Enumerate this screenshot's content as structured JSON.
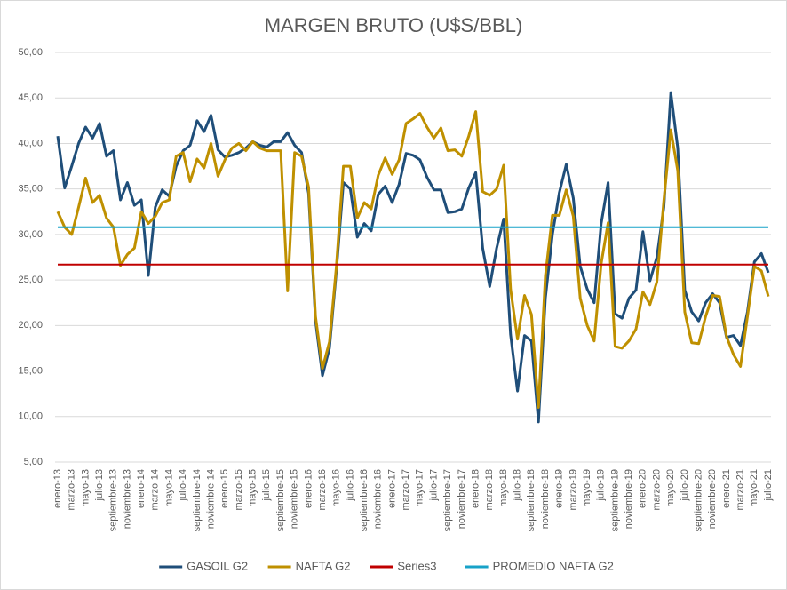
{
  "chart_data": {
    "type": "line",
    "title": "MARGEN BRUTO (U$S/BBL)",
    "categories": [
      "enero-13",
      null,
      "marzo-13",
      null,
      "mayo-13",
      null,
      "julio-13",
      null,
      "septiembre-13",
      null,
      "noviembre-13",
      null,
      "enero-14",
      null,
      "marzo-14",
      null,
      "mayo-14",
      null,
      "julio-14",
      null,
      "septiembre-14",
      null,
      "noviembre-14",
      null,
      "enero-15",
      null,
      "marzo-15",
      null,
      "mayo-15",
      null,
      "julio-15",
      null,
      "septiembre-15",
      null,
      "noviembre-15",
      null,
      "enero-16",
      null,
      "marzo-16",
      null,
      "mayo-16",
      null,
      "julio-16",
      null,
      "septiembre-16",
      null,
      "noviembre-16",
      null,
      "enero-17",
      null,
      "marzo-17",
      null,
      "mayo-17",
      null,
      "julio-17",
      null,
      "septiembre-17",
      null,
      "noviembre-17",
      null,
      "enero-18",
      null,
      "marzo-18",
      null,
      "mayo-18",
      null,
      "julio-18",
      null,
      "septiembre-18",
      null,
      "noviembre-18",
      null,
      "enero-19",
      null,
      "marzo-19",
      null,
      "mayo-19",
      null,
      "julio-19",
      null,
      "septiembre-19",
      null,
      "noviembre-19",
      null,
      "enero-20",
      null,
      "marzo-20",
      null,
      "mayo-20",
      null,
      "julio-20",
      null,
      "septiembre-20",
      null,
      "noviembre-20",
      null,
      "enero-21",
      null,
      "marzo-21",
      null,
      "mayo-21",
      null,
      "julio-21"
    ],
    "series": [
      {
        "name": "GASOIL G2",
        "color": "#1f4e79",
        "values": [
          40.8,
          35.1,
          37.5,
          40.0,
          41.8,
          40.6,
          42.2,
          38.6,
          39.2,
          33.8,
          35.7,
          33.2,
          33.8,
          25.5,
          33.0,
          34.9,
          34.2,
          37.5,
          39.2,
          39.8,
          42.5,
          41.3,
          43.1,
          39.3,
          38.5,
          38.7,
          39.0,
          39.5,
          40.2,
          39.8,
          39.6,
          40.2,
          40.2,
          41.2,
          39.8,
          39.0,
          34.5,
          20.5,
          14.5,
          17.5,
          26.0,
          35.7,
          35.0,
          29.7,
          31.2,
          30.4,
          34.4,
          35.3,
          33.5,
          35.5,
          38.9,
          38.7,
          38.2,
          36.3,
          34.9,
          34.9,
          32.4,
          32.5,
          32.8,
          35.1,
          36.8,
          28.5,
          24.3,
          28.5,
          31.7,
          19.0,
          12.8,
          18.9,
          18.3,
          9.4,
          23.0,
          30.0,
          34.6,
          37.7,
          34.0,
          26.5,
          24.0,
          22.5,
          31.2,
          35.7,
          21.3,
          20.8,
          23.0,
          23.9,
          30.3,
          24.9,
          27.5,
          33.0,
          45.6,
          39.5,
          23.9,
          21.5,
          20.5,
          22.5,
          23.5,
          22.5,
          18.7,
          18.9,
          17.8,
          21.5,
          27.0,
          27.9,
          25.8
        ]
      },
      {
        "name": "NAFTA G2",
        "color": "#bf9000",
        "values": [
          32.5,
          30.8,
          30.0,
          33.0,
          36.2,
          33.5,
          34.3,
          31.8,
          30.8,
          26.6,
          27.8,
          28.5,
          32.5,
          31.2,
          32.0,
          33.5,
          33.8,
          38.6,
          39.0,
          35.8,
          38.3,
          37.3,
          40.0,
          36.4,
          38.2,
          39.5,
          40.0,
          39.2,
          40.2,
          39.5,
          39.2,
          39.2,
          39.2,
          23.8,
          39.0,
          38.6,
          35.2,
          21.0,
          15.3,
          18.2,
          26.5,
          37.5,
          37.5,
          31.8,
          33.5,
          32.8,
          36.5,
          38.4,
          36.6,
          38.2,
          42.2,
          42.7,
          43.3,
          41.8,
          40.6,
          41.7,
          39.2,
          39.3,
          38.6,
          40.8,
          43.5,
          34.7,
          34.3,
          35.0,
          37.6,
          24.0,
          18.5,
          23.3,
          21.2,
          11.0,
          25.5,
          32.1,
          32.1,
          34.9,
          32.0,
          23.0,
          20.0,
          18.3,
          26.8,
          31.3,
          17.7,
          17.5,
          18.3,
          19.6,
          23.7,
          22.3,
          24.8,
          33.8,
          41.5,
          37.0,
          21.5,
          18.1,
          18.0,
          21.0,
          23.3,
          23.2,
          18.8,
          16.8,
          15.5,
          21.0,
          26.5,
          26.0,
          23.2
        ]
      },
      {
        "name": "Series3",
        "color": "#c00000",
        "value": 26.7
      },
      {
        "name": "PROMEDIO NAFTA G2",
        "color": "#17a2c8",
        "value": 30.8
      }
    ],
    "ylim": [
      5,
      50
    ],
    "yticks": [
      {
        "value": 5,
        "label": "5,00"
      },
      {
        "value": 10,
        "label": "10,00"
      },
      {
        "value": 15,
        "label": "15,00"
      },
      {
        "value": 20,
        "label": "20,00"
      },
      {
        "value": 25,
        "label": "25,00"
      },
      {
        "value": 30,
        "label": "30,00"
      },
      {
        "value": 35,
        "label": "35,00"
      },
      {
        "value": 40,
        "label": "40,00"
      },
      {
        "value": 45,
        "label": "45,00"
      },
      {
        "value": 50,
        "label": "50,00"
      }
    ],
    "grid": true,
    "legend": "bottom"
  }
}
